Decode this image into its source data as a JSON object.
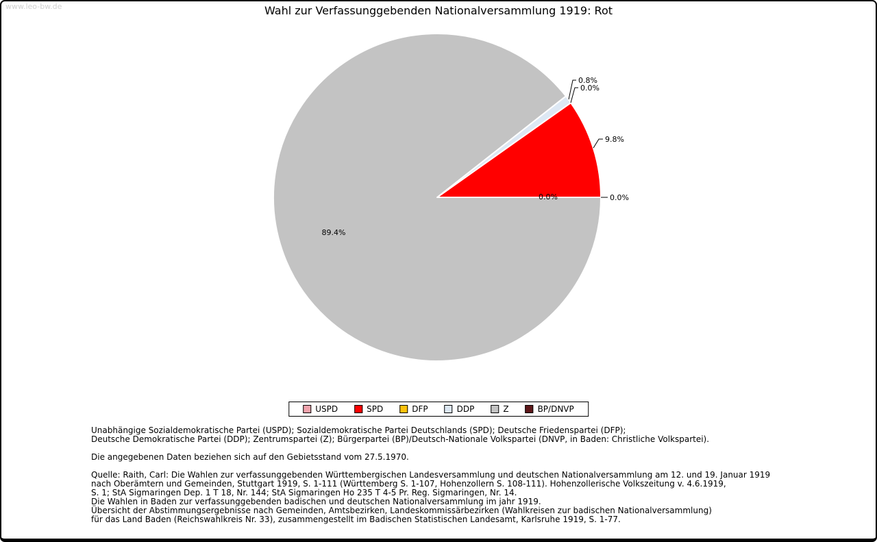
{
  "watermark": "www.leo-bw.de",
  "title": "Wahl zur Verfassunggebenden Nationalversammlung 1919: Rot",
  "chart_data": {
    "type": "pie",
    "title": "Wahl zur Verfassunggebenden Nationalversammlung 1919: Rot",
    "unit": "%",
    "start_angle_deg": 0,
    "direction": "counterclockwise",
    "legend_position": "bottom",
    "slices": [
      {
        "label": "USPD",
        "value": 0.0,
        "color": "#f2a3ad"
      },
      {
        "label": "SPD",
        "value": 9.8,
        "color": "#ff0000"
      },
      {
        "label": "DFP",
        "value": 0.0,
        "color": "#fdc10a"
      },
      {
        "label": "DDP",
        "value": 0.8,
        "color": "#dde8f4"
      },
      {
        "label": "Z",
        "value": 89.4,
        "color": "#c3c3c3"
      },
      {
        "label": "BP/DNVP",
        "value": 0.0,
        "color": "#5e181a"
      }
    ]
  },
  "footnotes": {
    "abbreviations": "Unabhängige Sozialdemokratische Partei (USPD); Sozialdemokratische Partei Deutschlands (SPD); Deutsche Friedenspartei (DFP);\nDeutsche Demokratische Partei (DDP); Zentrumspartei (Z); Bürgerpartei (BP)/Deutsch-Nationale Volkspartei (DNVP, in Baden: Christliche Volkspartei).",
    "gebietsstand": "Die angegebenen Daten beziehen sich auf den Gebietsstand vom 27.5.1970.",
    "quelle": "Quelle: Raith, Carl: Die Wahlen zur verfassunggebenden Württembergischen Landesversammlung und deutschen Nationalversammlung am 12. und 19. Januar 1919\nnach Oberämtern und Gemeinden, Stuttgart 1919, S. 1-111 (Württemberg S. 1-107, Hohenzollern S. 108-111). Hohenzollerische Volkszeitung v. 4.6.1919,\nS. 1; StA Sigmaringen Dep. 1 T 18, Nr. 144; StA Sigmaringen Ho 235 T 4-5 Pr. Reg. Sigmaringen, Nr. 14.\nDie Wahlen in Baden zur verfassunggebenden badischen und deutschen Nationalversammlung im jahr 1919.\nÜbersicht der Abstimmungsergebnisse nach Gemeinden, Amtsbezirken, Landeskommissärbezirken (Wahlkreisen zur badischen Nationalversammlung)\nfür das Land Baden (Reichswahlkreis Nr. 33), zusammengestellt im Badischen Statistischen Landesamt, Karlsruhe 1919, S. 1-77."
  }
}
